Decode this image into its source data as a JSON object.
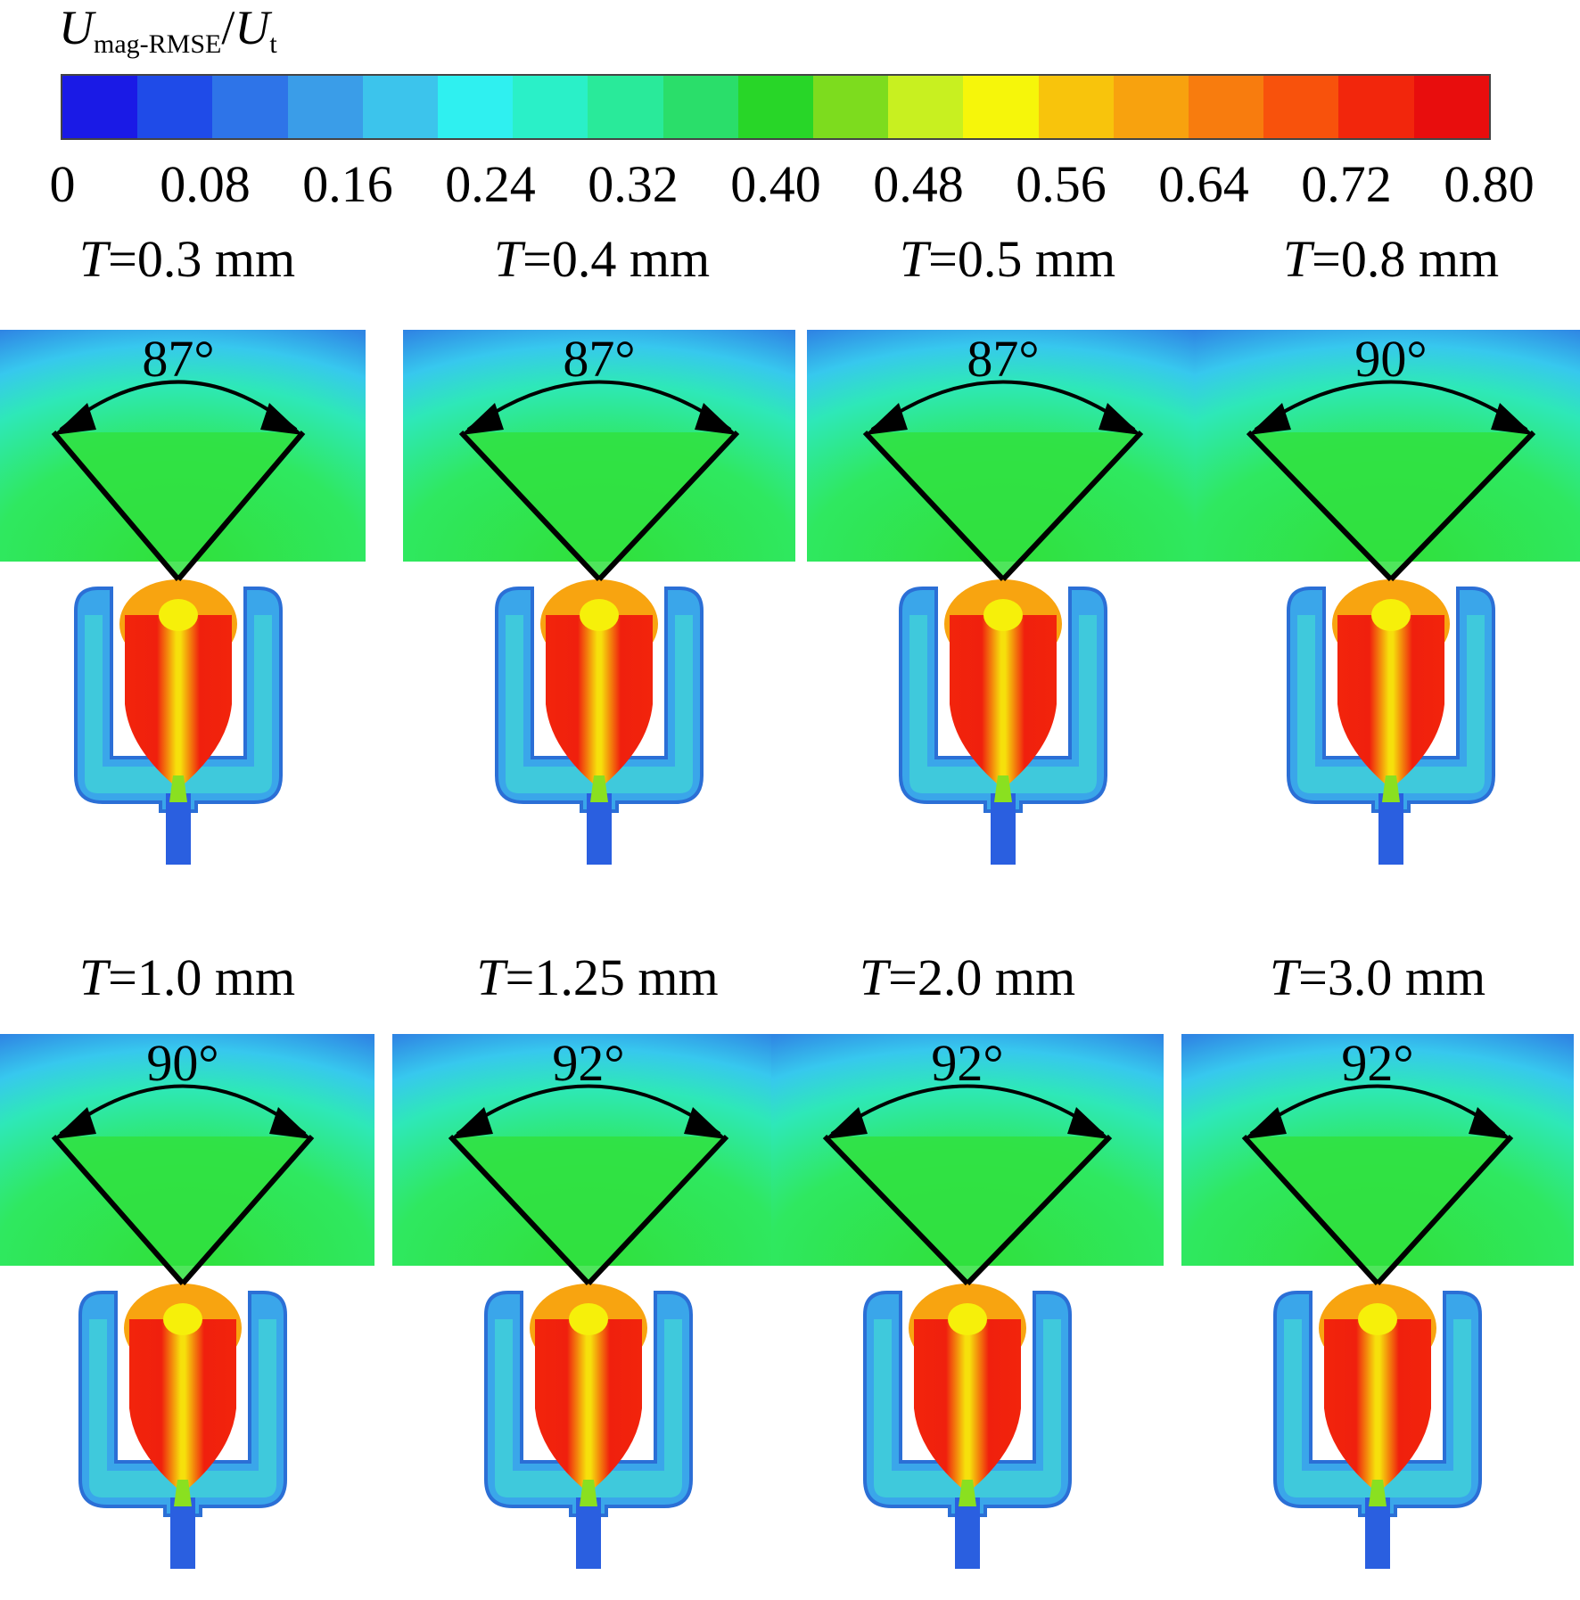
{
  "colorbar": {
    "title_main": "U",
    "title_sub": "mag-RMSE",
    "title_slash": "/",
    "title_main2": "U",
    "title_sub2": "t",
    "colors": [
      "#1a1ae6",
      "#1f4be8",
      "#2e74e8",
      "#3a9de8",
      "#3cc4ec",
      "#2ff0f0",
      "#2af0c8",
      "#29ea9a",
      "#2ade6a",
      "#28d628",
      "#7ddc1e",
      "#c8f020",
      "#f6f60a",
      "#f8c40c",
      "#f8a20e",
      "#f87c0e",
      "#f8520c",
      "#f2260c",
      "#e80d0d"
    ],
    "ticks": [
      "0",
      "0.08",
      "0.16",
      "0.24",
      "0.32",
      "0.40",
      "0.48",
      "0.56",
      "0.64",
      "0.72",
      "0.80"
    ]
  },
  "panels": [
    {
      "t_prefix": "T",
      "t_value": "=0.3 mm",
      "angle": "87°"
    },
    {
      "t_prefix": "T",
      "t_value": "=0.4 mm",
      "angle": "87°"
    },
    {
      "t_prefix": "T",
      "t_value": "=0.5 mm",
      "angle": "87°"
    },
    {
      "t_prefix": "T",
      "t_value": "=0.8 mm",
      "angle": "90°"
    },
    {
      "t_prefix": "T",
      "t_value": "=1.0 mm",
      "angle": "90°"
    },
    {
      "t_prefix": "T",
      "t_value": "=1.25 mm",
      "angle": "92°"
    },
    {
      "t_prefix": "T",
      "t_value": "=2.0 mm",
      "angle": "92°"
    },
    {
      "t_prefix": "T",
      "t_value": "=3.0 mm",
      "angle": "92°"
    }
  ]
}
